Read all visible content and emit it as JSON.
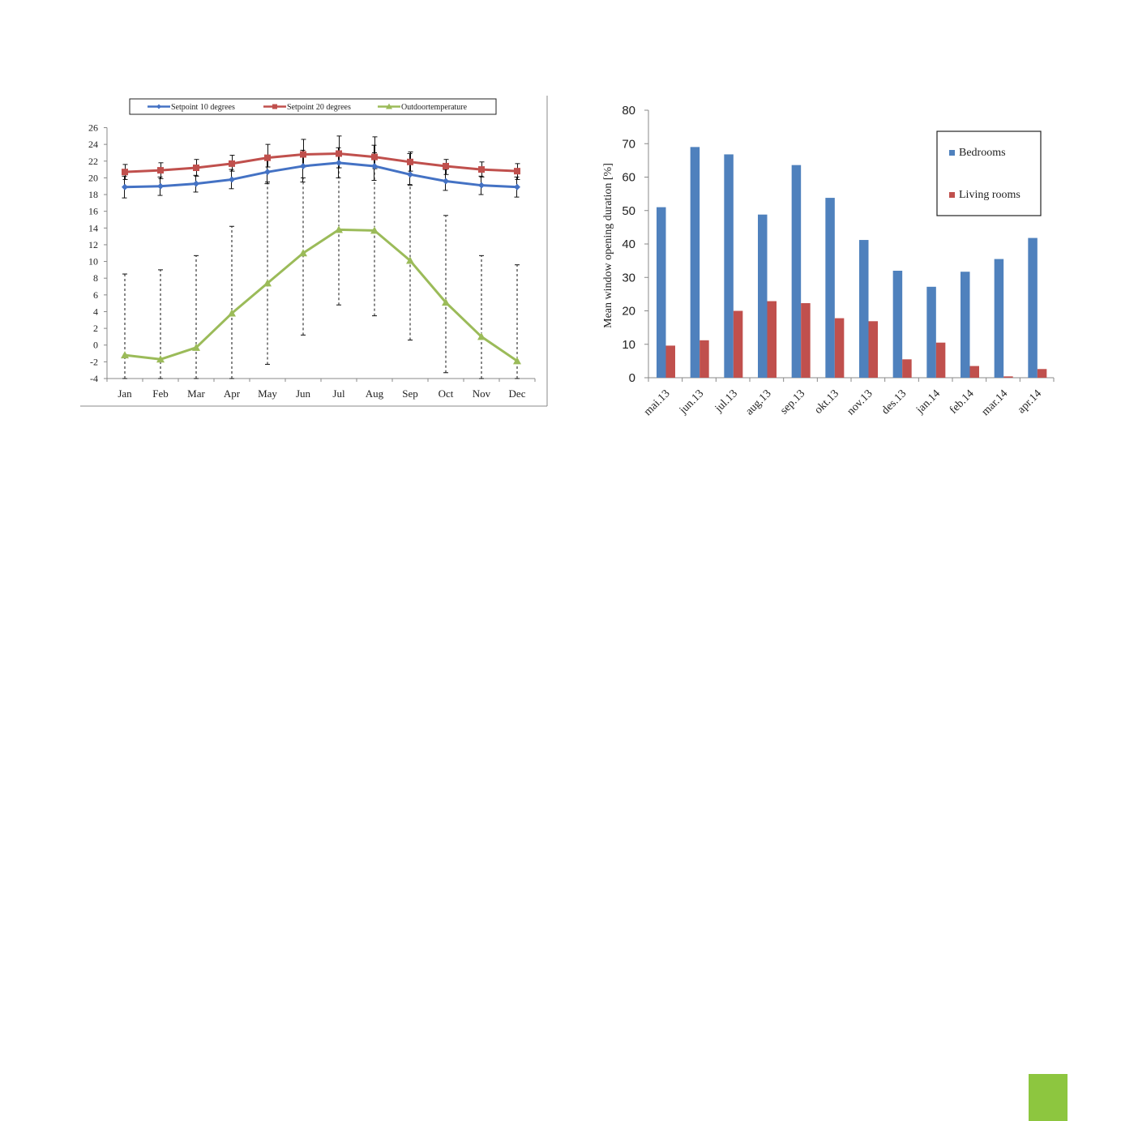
{
  "colors": {
    "blue": "#4472c4",
    "red": "#c0504d",
    "green": "#9bbb59",
    "accent_block": "#8dc63f"
  },
  "chart_data": [
    {
      "type": "line",
      "categories": [
        "Jan",
        "Feb",
        "Mar",
        "Apr",
        "May",
        "Jun",
        "Jul",
        "Aug",
        "Sep",
        "Oct",
        "Nov",
        "Dec"
      ],
      "ylim": [
        -4,
        26
      ],
      "yticks": [
        -4,
        -2,
        0,
        2,
        4,
        6,
        8,
        10,
        12,
        14,
        16,
        18,
        20,
        22,
        24,
        26
      ],
      "legend_position": "top",
      "series": [
        {
          "name": "Setpoint 10 degrees",
          "color": "#4472c4",
          "marker": "diamond",
          "values": [
            18.9,
            19.0,
            19.3,
            19.8,
            20.7,
            21.4,
            21.8,
            21.4,
            20.4,
            19.6,
            19.1,
            18.9
          ],
          "err_low": [
            17.6,
            17.9,
            18.3,
            18.7,
            19.3,
            19.5,
            20.0,
            19.7,
            19.2,
            18.5,
            18.0,
            17.7
          ],
          "err_high": [
            20.2,
            20.1,
            20.3,
            21.0,
            22.1,
            23.3,
            23.6,
            23.9,
            22.9,
            21.0,
            20.2,
            20.1
          ]
        },
        {
          "name": "Setpoint 20 degrees",
          "color": "#c0504d",
          "marker": "square",
          "values": [
            20.7,
            20.9,
            21.2,
            21.7,
            22.4,
            22.8,
            22.9,
            22.5,
            21.9,
            21.4,
            21.0,
            20.8
          ],
          "err_low": [
            19.8,
            19.9,
            20.2,
            20.8,
            21.3,
            21.3,
            21.2,
            21.1,
            20.8,
            20.4,
            20.1,
            19.8
          ],
          "err_high": [
            21.6,
            21.8,
            22.2,
            22.7,
            24.0,
            24.6,
            25.0,
            24.9,
            23.1,
            22.2,
            21.9,
            21.7
          ]
        },
        {
          "name": "Outdoortemperature",
          "color": "#9bbb59",
          "marker": "triangle",
          "values": [
            -1.2,
            -1.7,
            -0.3,
            3.8,
            7.4,
            11.0,
            13.8,
            13.7,
            10.1,
            5.1,
            1.0,
            -1.9
          ],
          "err_low": [
            -4.0,
            -4.0,
            -4.0,
            -4.0,
            -2.3,
            1.2,
            4.8,
            3.5,
            0.6,
            -3.3,
            -4.0,
            -4.0
          ],
          "err_high": [
            8.5,
            9.0,
            10.7,
            14.2,
            19.5,
            20.0,
            21.2,
            23.0,
            19.1,
            15.5,
            10.7,
            9.6
          ]
        }
      ]
    },
    {
      "type": "bar",
      "categories": [
        "mai.13",
        "jun.13",
        "jul.13",
        "aug.13",
        "sep.13",
        "okt.13",
        "nov.13",
        "des.13",
        "jan.14",
        "feb.14",
        "mar.14",
        "apr.14"
      ],
      "ylabel": "Mean window opening duration [%]",
      "ylim": [
        0,
        80
      ],
      "yticks": [
        0,
        10,
        20,
        30,
        40,
        50,
        60,
        70,
        80
      ],
      "legend_position": "top-right",
      "series": [
        {
          "name": "Bedrooms",
          "color": "#4f81bd",
          "values": [
            51,
            69,
            66.8,
            48.8,
            63.6,
            53.8,
            41.2,
            32,
            27.2,
            31.7,
            35.5,
            41.8
          ]
        },
        {
          "name": "Living rooms",
          "color": "#c0504d",
          "values": [
            9.6,
            11.2,
            20,
            22.9,
            22.3,
            17.8,
            16.9,
            5.5,
            10.5,
            3.5,
            0.4,
            2.6
          ]
        }
      ]
    }
  ]
}
